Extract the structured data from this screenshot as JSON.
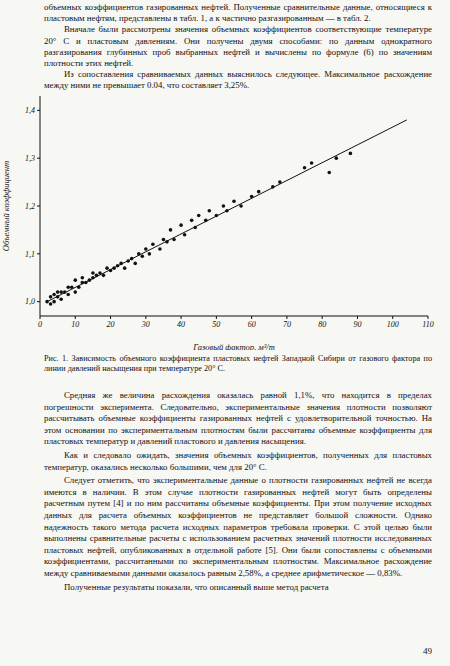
{
  "paragraphs_top": [
    "объемных коэффициентов газированных нефтей. Полученные сравнительные данные, относящиеся к пластовым нефтям, представлены в табл. 1, а к частично разгазированным — в табл. 2.",
    "Вначале были рассмотрены значения объемных коэффициентов соответствующие температуре 20° С и пластовым давлениям. Они получены двумя способами: по данным однократного разгазирования глубинных проб выбранных нефтей и вычислены по формуле (6) по значениям плотности этих нефтей.",
    "Из сопоставления сравниваемых данных выяснилось следующее. Максимальное расхождение между ними не превышает 0.04, что составляет 3,25%."
  ],
  "chart_data": {
    "type": "scatter",
    "x_label": "Газовый фактор, м³/т",
    "y_label": "Объемный коэффициент",
    "xlim": [
      0,
      110
    ],
    "xticks": [
      0,
      10,
      20,
      30,
      40,
      50,
      60,
      70,
      80,
      90,
      100,
      110
    ],
    "ylim": [
      0.97,
      1.43
    ],
    "yticks": [
      {
        "value": 1.0,
        "label": "1,0"
      },
      {
        "value": 1.1,
        "label": "1,1"
      },
      {
        "value": 1.2,
        "label": "1,2"
      },
      {
        "value": 1.3,
        "label": "1,3"
      },
      {
        "value": 1.4,
        "label": "1,4"
      }
    ],
    "grid": false,
    "series": [
      {
        "type": "scatter",
        "marker": "circle",
        "color": "#111111",
        "x": [
          2,
          3,
          3,
          4,
          4,
          5,
          5,
          6,
          6,
          7,
          8,
          8,
          9,
          10,
          10,
          11,
          12,
          12,
          13,
          14,
          15,
          15,
          16,
          17,
          18,
          19,
          20,
          21,
          22,
          23,
          24,
          25,
          26,
          27,
          28,
          29,
          30,
          31,
          32,
          34,
          35,
          36,
          37,
          38,
          40,
          41,
          43,
          44,
          45,
          47,
          48,
          50,
          52,
          53,
          55,
          57,
          60,
          62,
          66,
          68,
          75,
          77,
          82,
          84,
          88
        ],
        "values": [
          1.0,
          1.01,
          0.995,
          1.0,
          1.015,
          1.01,
          1.02,
          1.005,
          1.02,
          1.02,
          1.015,
          1.03,
          1.03,
          1.02,
          1.045,
          1.03,
          1.04,
          1.05,
          1.04,
          1.045,
          1.05,
          1.06,
          1.055,
          1.06,
          1.055,
          1.07,
          1.065,
          1.07,
          1.075,
          1.08,
          1.07,
          1.085,
          1.09,
          1.08,
          1.1,
          1.095,
          1.11,
          1.1,
          1.12,
          1.11,
          1.13,
          1.125,
          1.15,
          1.13,
          1.16,
          1.14,
          1.17,
          1.155,
          1.18,
          1.17,
          1.19,
          1.18,
          1.2,
          1.19,
          1.21,
          1.2,
          1.22,
          1.23,
          1.24,
          1.25,
          1.28,
          1.29,
          1.27,
          1.3,
          1.31
        ]
      },
      {
        "type": "line",
        "line_style": "solid",
        "color": "#111111",
        "x": [
          2,
          104
        ],
        "values": [
          1.0,
          1.38
        ]
      }
    ]
  },
  "caption": "Рис. 1. Зависимость объемного коэффициента пластовых нефтей Западной Сибири от газового фактора по линии давлений насыщения при температуре 20° С.",
  "paragraphs_bottom": [
    "Средняя же величина расхождения оказалась равной 1,1%, что находится в пределах погрешности эксперимента. Следовательно, экспериментальные значения плотности позволяют рассчитывать объемные коэффициенты газированных нефтей с удовлетворительной точностью. На этом основании по экспериментальным плотностям были рассчитаны объемные коэффициенты для пластовых температур и давлений пластового и давления насыщения.",
    "Как и следовало ожидать, значения объемных коэффициентов, полученных для пластовых температур, оказались несколько большими, чем для 20° С.",
    "Следует отметить, что экспериментальные данные о плотности газированных нефтей не всегда имеются в наличии. В этом случае плотности газированных нефтей могут быть определены расчетным путем [4] и по ним рассчитаны объемные коэффициенты. При этом получение исходных данных для расчета объемных коэффициентов не представляет большой сложности. Однако надежность такого метода расчета исходных параметров требовала проверки. С этой целью были выполнены сравнительные расчеты с использованием расчетных значений плотности исследованных пластовых нефтей, опубликованных в отдельной работе [5]. Они были сопоставлены с объемными коэффициентами, рассчитанными по экспериментальным плотностям. Максимальное расхождение между сравниваемыми данными оказалось равным 2,58%, а среднее арифметическое — 0,83%.",
    "Полученные результаты показали, что описанный выше метод расчета"
  ],
  "page_number": "49"
}
